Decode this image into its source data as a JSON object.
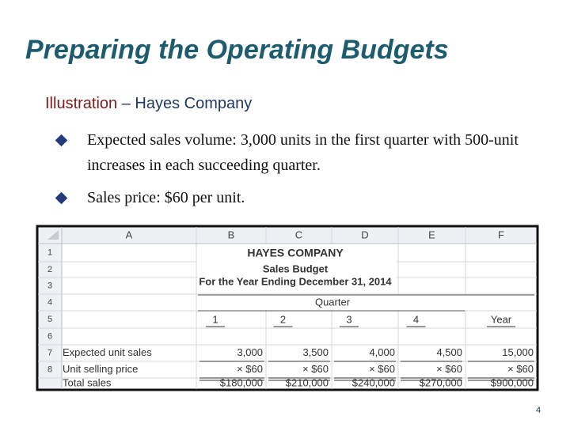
{
  "header": {
    "title": "Preparing the Operating Budgets",
    "subtitle_label": "Illustration",
    "subtitle_rest": "– Hayes Company"
  },
  "bullets": [
    "Expected sales volume: 3,000 units in the first quarter with 500-unit increases in each succeeding quarter.",
    "Sales price: $60 per unit."
  ],
  "sheet": {
    "columns": [
      "A",
      "B",
      "C",
      "D",
      "E",
      "F"
    ],
    "row_numbers": [
      "1",
      "2",
      "3",
      "4",
      "5",
      "6",
      "7",
      "8"
    ],
    "company": "HAYES COMPANY",
    "report": "Sales Budget",
    "period": "For the Year Ending December 31, 2014",
    "group_header": "Quarter",
    "column_heads": [
      "1",
      "2",
      "3",
      "4",
      "Year"
    ],
    "rows": [
      {
        "label": "Expected unit sales",
        "cells": [
          "3,000",
          "3,500",
          "4,000",
          "4,500",
          "15,000"
        ]
      },
      {
        "label": "Unit selling price",
        "cells": [
          "× $60",
          "× $60",
          "× $60",
          "× $60",
          "× $60"
        ]
      },
      {
        "label": "Total sales",
        "cells": [
          "$180,000",
          "$210,000",
          "$240,000",
          "$270,000",
          "$900,000"
        ]
      }
    ]
  },
  "page_number": "4"
}
